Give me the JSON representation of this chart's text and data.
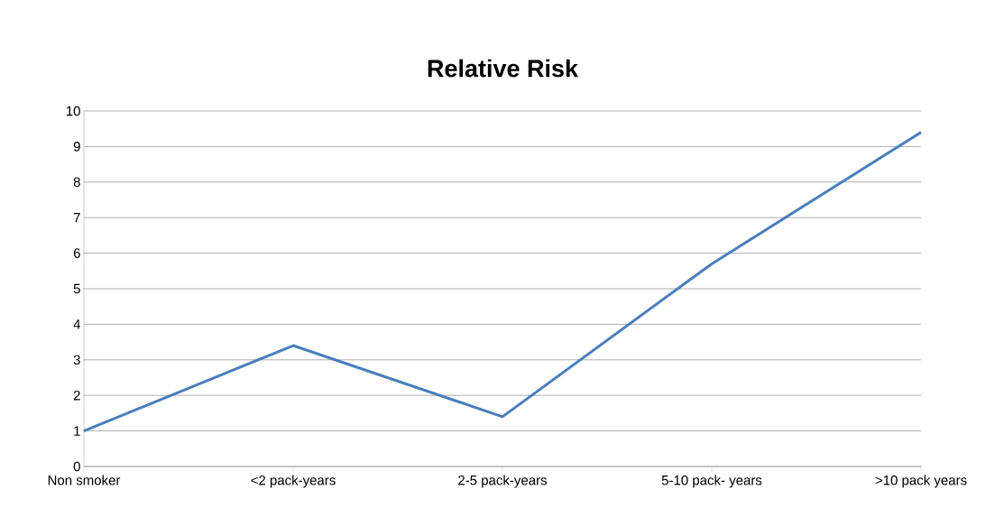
{
  "chart_data": {
    "type": "line",
    "title": "Relative Risk",
    "categories": [
      "Non smoker",
      "<2 pack-years",
      "2-5 pack-years",
      "5-10 pack- years",
      ">10 pack years"
    ],
    "series": [
      {
        "color": "#4a7ebb",
        "values": [
          1,
          3.4,
          1.4,
          5.7,
          9.4
        ]
      }
    ],
    "ylim": [
      0,
      10
    ],
    "yticks": [
      0,
      1,
      2,
      3,
      4,
      5,
      6,
      7,
      8,
      9,
      10
    ],
    "grid": "y",
    "marker": "none",
    "line_style": "solid"
  }
}
